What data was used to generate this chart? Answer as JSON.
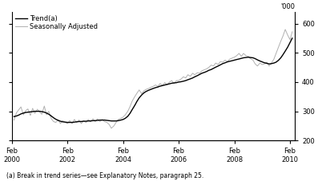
{
  "footnote": "(a) Break in trend series—see Explanatory Notes, paragraph 25.",
  "legend": [
    "Trend(a)",
    "Seasonally Adjusted"
  ],
  "trend_color": "#000000",
  "seasonal_color": "#b0b0b0",
  "ylim": [
    200,
    640
  ],
  "yticks": [
    200,
    300,
    400,
    500,
    600
  ],
  "xtick_years": [
    2000,
    2002,
    2004,
    2006,
    2008,
    2010
  ],
  "trend_x": [
    2000.08,
    2000.17,
    2000.25,
    2000.33,
    2000.42,
    2000.5,
    2000.58,
    2000.67,
    2000.75,
    2000.83,
    2000.92,
    2001.0,
    2001.08,
    2001.17,
    2001.25,
    2001.33,
    2001.42,
    2001.5,
    2001.58,
    2001.67,
    2001.75,
    2001.83,
    2001.92,
    2002.0,
    2002.08,
    2002.17,
    2002.25,
    2002.33,
    2002.42,
    2002.5,
    2002.58,
    2002.67,
    2002.75,
    2002.83,
    2002.92,
    2003.0,
    2003.08,
    2003.17,
    2003.25,
    2003.33,
    2003.42,
    2003.5,
    2003.58,
    2003.67,
    2003.75,
    2003.83,
    2003.92,
    2004.0,
    2004.08,
    2004.17,
    2004.25,
    2004.33,
    2004.42,
    2004.5,
    2004.58,
    2004.67,
    2004.75,
    2004.83,
    2004.92,
    2005.0,
    2005.08,
    2005.17,
    2005.25,
    2005.33,
    2005.42,
    2005.5,
    2005.58,
    2005.67,
    2005.75,
    2005.83,
    2005.92,
    2006.0,
    2006.08,
    2006.17,
    2006.25,
    2006.33,
    2006.42,
    2006.5,
    2006.58,
    2006.67,
    2006.75,
    2006.83,
    2006.92,
    2007.0,
    2007.08,
    2007.17,
    2007.25,
    2007.33,
    2007.42,
    2007.5,
    2007.58,
    2007.67,
    2007.75,
    2007.83,
    2007.92,
    2008.0,
    2008.08,
    2008.17,
    2008.25,
    2008.33,
    2008.42,
    2008.5,
    2008.58,
    2008.67,
    2008.75,
    2008.83,
    2008.92,
    2009.0,
    2009.08,
    2009.17,
    2009.25,
    2009.33,
    2009.42,
    2009.5,
    2009.58,
    2009.67,
    2009.75,
    2009.83,
    2009.92,
    2010.0,
    2010.08
  ],
  "trend_y": [
    282,
    284,
    287,
    291,
    294,
    296,
    297,
    298,
    299,
    300,
    300,
    300,
    299,
    297,
    294,
    290,
    284,
    278,
    273,
    269,
    266,
    264,
    263,
    262,
    262,
    262,
    263,
    264,
    265,
    265,
    266,
    266,
    267,
    267,
    268,
    268,
    269,
    270,
    270,
    270,
    269,
    268,
    267,
    267,
    267,
    268,
    270,
    272,
    276,
    283,
    293,
    306,
    320,
    334,
    346,
    356,
    363,
    368,
    372,
    375,
    378,
    381,
    383,
    386,
    388,
    390,
    392,
    394,
    396,
    397,
    398,
    400,
    401,
    403,
    405,
    408,
    411,
    414,
    418,
    422,
    426,
    430,
    433,
    436,
    440,
    443,
    447,
    451,
    455,
    459,
    463,
    466,
    469,
    471,
    473,
    475,
    477,
    479,
    481,
    483,
    484,
    485,
    484,
    483,
    480,
    476,
    472,
    469,
    466,
    464,
    462,
    463,
    465,
    468,
    474,
    483,
    494,
    506,
    520,
    535,
    550
  ],
  "seasonal_x": [
    2000.08,
    2000.17,
    2000.25,
    2000.33,
    2000.42,
    2000.5,
    2000.58,
    2000.67,
    2000.75,
    2000.83,
    2000.92,
    2001.0,
    2001.08,
    2001.17,
    2001.25,
    2001.33,
    2001.42,
    2001.5,
    2001.58,
    2001.67,
    2001.75,
    2001.83,
    2001.92,
    2002.0,
    2002.08,
    2002.17,
    2002.25,
    2002.33,
    2002.42,
    2002.5,
    2002.58,
    2002.67,
    2002.75,
    2002.83,
    2002.92,
    2003.0,
    2003.08,
    2003.17,
    2003.25,
    2003.33,
    2003.42,
    2003.5,
    2003.58,
    2003.67,
    2003.75,
    2003.83,
    2003.92,
    2004.0,
    2004.08,
    2004.17,
    2004.25,
    2004.33,
    2004.42,
    2004.5,
    2004.58,
    2004.67,
    2004.75,
    2004.83,
    2004.92,
    2005.0,
    2005.08,
    2005.17,
    2005.25,
    2005.33,
    2005.42,
    2005.5,
    2005.58,
    2005.67,
    2005.75,
    2005.83,
    2005.92,
    2006.0,
    2006.08,
    2006.17,
    2006.25,
    2006.33,
    2006.42,
    2006.5,
    2006.58,
    2006.67,
    2006.75,
    2006.83,
    2006.92,
    2007.0,
    2007.08,
    2007.17,
    2007.25,
    2007.33,
    2007.42,
    2007.5,
    2007.58,
    2007.67,
    2007.75,
    2007.83,
    2007.92,
    2008.0,
    2008.08,
    2008.17,
    2008.25,
    2008.33,
    2008.42,
    2008.5,
    2008.58,
    2008.67,
    2008.75,
    2008.83,
    2008.92,
    2009.0,
    2009.08,
    2009.17,
    2009.25,
    2009.33,
    2009.42,
    2009.5,
    2009.58,
    2009.67,
    2009.75,
    2009.83,
    2009.92,
    2010.0,
    2010.08
  ],
  "seasonal_y": [
    270,
    295,
    305,
    315,
    288,
    302,
    308,
    286,
    310,
    293,
    307,
    298,
    290,
    318,
    288,
    300,
    275,
    265,
    262,
    270,
    258,
    268,
    262,
    258,
    268,
    258,
    272,
    262,
    270,
    258,
    268,
    262,
    272,
    264,
    274,
    265,
    274,
    265,
    272,
    265,
    262,
    255,
    242,
    250,
    262,
    272,
    276,
    280,
    288,
    300,
    316,
    335,
    350,
    362,
    373,
    360,
    370,
    375,
    378,
    382,
    385,
    390,
    385,
    395,
    388,
    398,
    390,
    400,
    405,
    395,
    405,
    405,
    410,
    418,
    414,
    425,
    420,
    430,
    425,
    432,
    430,
    438,
    442,
    445,
    450,
    458,
    455,
    465,
    460,
    470,
    468,
    475,
    470,
    478,
    482,
    485,
    490,
    498,
    488,
    498,
    490,
    488,
    480,
    475,
    462,
    455,
    465,
    460,
    462,
    468,
    455,
    465,
    478,
    498,
    518,
    540,
    558,
    580,
    560,
    545,
    572
  ]
}
